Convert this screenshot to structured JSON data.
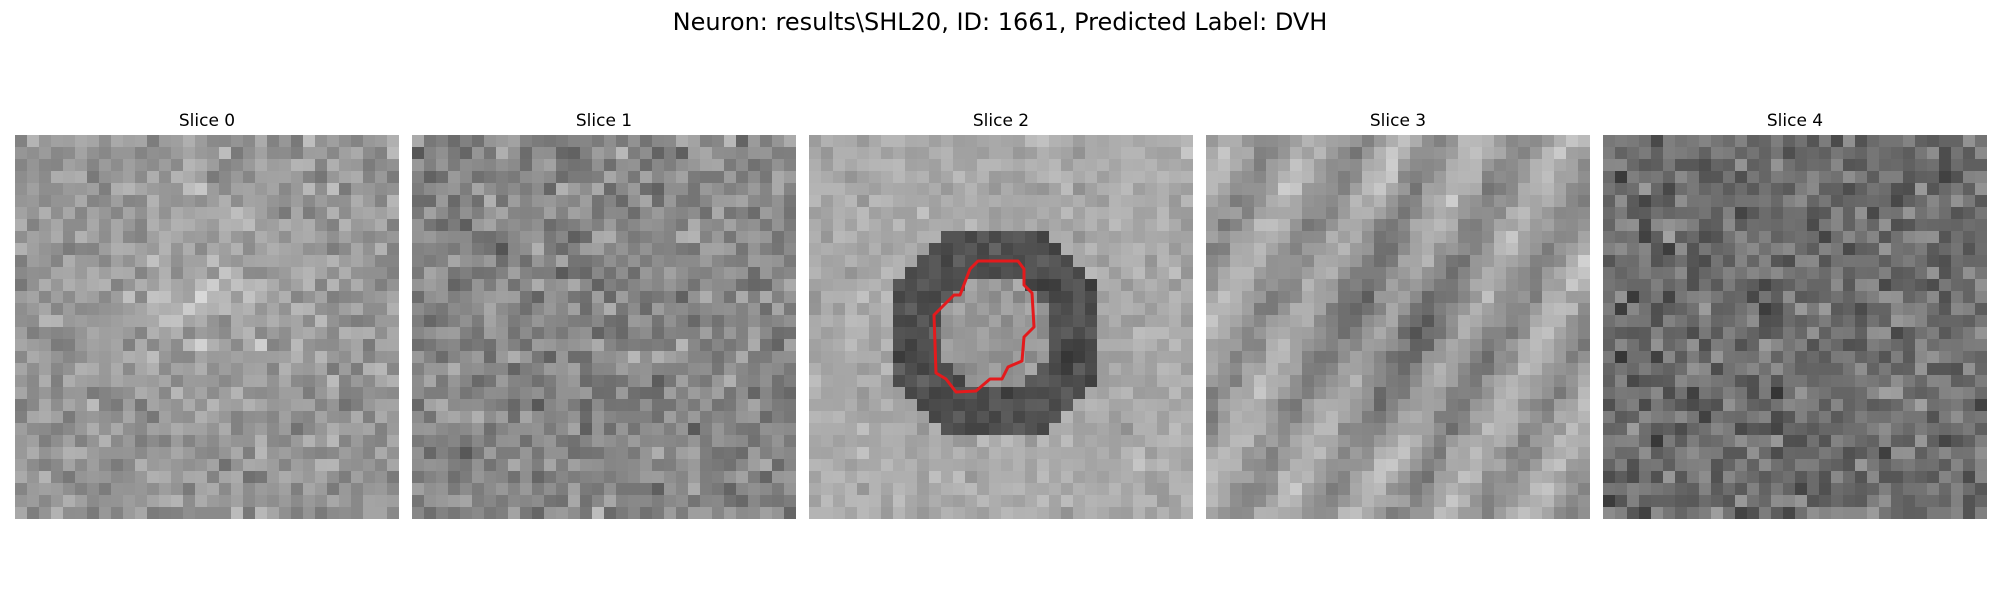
{
  "figure": {
    "title": "Neuron: results\\SHL20, ID: 1661, Predicted Label: DVH"
  },
  "panels": [
    {
      "title": "Slice 0",
      "has_contour": false
    },
    {
      "title": "Slice 1",
      "has_contour": false
    },
    {
      "title": "Slice 2",
      "has_contour": true
    },
    {
      "title": "Slice 3",
      "has_contour": false
    },
    {
      "title": "Slice 4",
      "has_contour": false
    }
  ],
  "colors": {
    "contour": "#e41a1c",
    "background": "#ffffff"
  },
  "image": {
    "grid": 32,
    "colormap": "gray"
  }
}
